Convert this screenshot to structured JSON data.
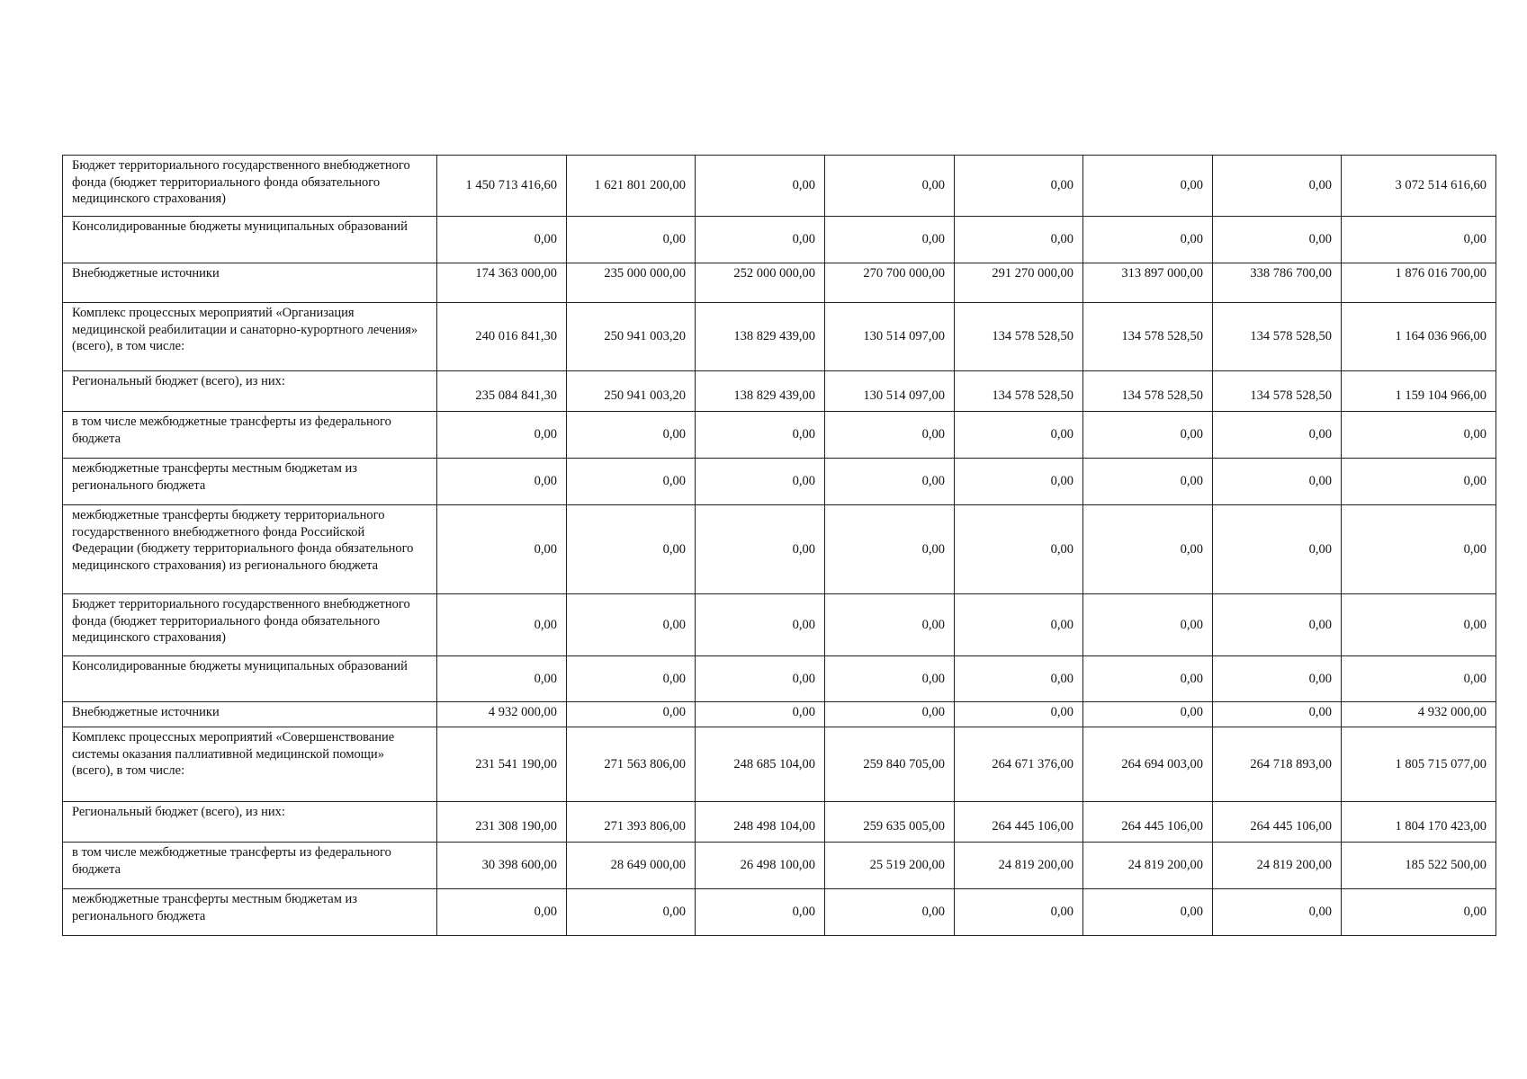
{
  "table": {
    "rows": [
      {
        "label": "Бюджет территориального государственного внебюджетного фонда (бюджет территориального фонда обязательного медицинского страхования)",
        "values": [
          "1 450 713 416,60",
          "1 621 801 200,00",
          "0,00",
          "0,00",
          "0,00",
          "0,00",
          "0,00",
          "3 072 514 616,60"
        ]
      },
      {
        "label": "Консолидированные бюджеты муниципальных образований",
        "values": [
          "0,00",
          "0,00",
          "0,00",
          "0,00",
          "0,00",
          "0,00",
          "0,00",
          "0,00"
        ]
      },
      {
        "label": "Внебюджетные источники",
        "values": [
          "174 363 000,00",
          "235 000 000,00",
          "252 000 000,00",
          "270 700 000,00",
          "291 270 000,00",
          "313 897 000,00",
          "338 786 700,00",
          "1 876 016 700,00"
        ]
      },
      {
        "label": "Комплекс процессных мероприятий «Организация медицинской реабилитации и санаторно-курортного лечения» (всего), в том числе:",
        "values": [
          "240 016 841,30",
          "250 941 003,20",
          "138 829 439,00",
          "130 514 097,00",
          "134 578 528,50",
          "134 578 528,50",
          "134 578 528,50",
          "1 164 036 966,00"
        ]
      },
      {
        "label": "Региональный бюджет (всего), из них:",
        "values": [
          "235 084 841,30",
          "250 941 003,20",
          "138 829 439,00",
          "130 514 097,00",
          "134 578 528,50",
          "134 578 528,50",
          "134 578 528,50",
          "1 159 104 966,00"
        ]
      },
      {
        "label": "в том числе межбюджетные трансферты из федерального бюджета",
        "values": [
          "0,00",
          "0,00",
          "0,00",
          "0,00",
          "0,00",
          "0,00",
          "0,00",
          "0,00"
        ]
      },
      {
        "label": "межбюджетные трансферты местным бюджетам из регионального бюджета",
        "values": [
          "0,00",
          "0,00",
          "0,00",
          "0,00",
          "0,00",
          "0,00",
          "0,00",
          "0,00"
        ]
      },
      {
        "label": "межбюджетные трансферты бюджету территориального государственного внебюджетного фонда Российской Федерации (бюджету территориального фонда обязательного медицинского страхования) из регионального бюджета",
        "values": [
          "0,00",
          "0,00",
          "0,00",
          "0,00",
          "0,00",
          "0,00",
          "0,00",
          "0,00"
        ]
      },
      {
        "label": "Бюджет территориального государственного внебюджетного фонда (бюджет территориального фонда обязательного медицинского страхования)",
        "values": [
          "0,00",
          "0,00",
          "0,00",
          "0,00",
          "0,00",
          "0,00",
          "0,00",
          "0,00"
        ]
      },
      {
        "label": "Консолидированные бюджеты муниципальных образований",
        "values": [
          "0,00",
          "0,00",
          "0,00",
          "0,00",
          "0,00",
          "0,00",
          "0,00",
          "0,00"
        ]
      },
      {
        "label": "Внебюджетные источники",
        "values": [
          "4 932 000,00",
          "0,00",
          "0,00",
          "0,00",
          "0,00",
          "0,00",
          "0,00",
          "4 932 000,00"
        ]
      },
      {
        "label": "Комплекс процессных мероприятий «Совершенствование системы оказания паллиативной медицинской помощи» (всего), в том числе:",
        "values": [
          "231 541 190,00",
          "271 563 806,00",
          "248 685 104,00",
          "259 840 705,00",
          "264 671 376,00",
          "264 694 003,00",
          "264 718 893,00",
          "1 805 715 077,00"
        ]
      },
      {
        "label": "Региональный бюджет (всего), из них:",
        "values": [
          "231 308 190,00",
          "271 393 806,00",
          "248 498 104,00",
          "259 635 005,00",
          "264 445 106,00",
          "264 445 106,00",
          "264 445 106,00",
          "1 804 170 423,00"
        ]
      },
      {
        "label": "в том числе межбюджетные трансферты из федерального бюджета",
        "values": [
          "30 398 600,00",
          "28 649 000,00",
          "26 498 100,00",
          "25 519 200,00",
          "24 819 200,00",
          "24 819 200,00",
          "24 819 200,00",
          "185 522 500,00"
        ]
      },
      {
        "label": "межбюджетные трансферты местным бюджетам из регионального бюджета",
        "values": [
          "0,00",
          "0,00",
          "0,00",
          "0,00",
          "0,00",
          "0,00",
          "0,00",
          "0,00"
        ]
      }
    ]
  }
}
